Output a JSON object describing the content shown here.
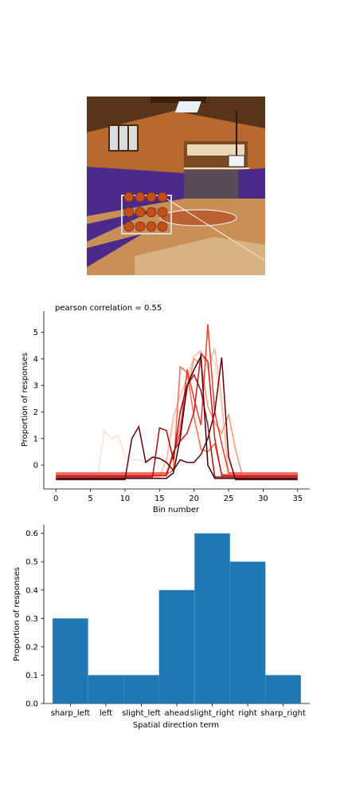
{
  "image": {
    "subject": "indoor-basketball-court-photo",
    "colors": {
      "wood": "#c98f55",
      "purple": "#4b2a8c",
      "wall": "#b86a2e",
      "ceiling": "#5a3418"
    }
  },
  "chart_data": [
    {
      "type": "line",
      "title": "pearson correlation = 0.55",
      "xlabel": "Bin number",
      "ylabel": "Proportion of responses",
      "xlim": [
        -1.75,
        36.75
      ],
      "ylim": [
        -0.9,
        5.8
      ],
      "xticks": [
        0,
        5,
        10,
        15,
        20,
        25,
        30,
        35
      ],
      "yticks": [
        0,
        1,
        2,
        3,
        4,
        5
      ],
      "colormap": "Reds",
      "x": [
        0,
        1,
        2,
        3,
        4,
        5,
        6,
        7,
        8,
        9,
        10,
        11,
        12,
        13,
        14,
        15,
        16,
        17,
        18,
        19,
        20,
        21,
        22,
        23,
        24,
        25,
        26,
        27,
        28,
        29,
        30,
        31,
        32,
        33,
        34,
        35
      ],
      "series": [
        {
          "color": "#fee0d2",
          "values": [
            -0.5,
            -0.5,
            -0.5,
            -0.5,
            -0.5,
            -0.5,
            -0.5,
            1.3,
            1.0,
            1.1,
            0.3,
            0.2,
            0.2,
            0.1,
            0.2,
            0.3,
            0.1,
            1.5,
            2.2,
            3.0,
            3.5,
            3.8,
            4.2,
            3.9,
            2.0,
            0.5,
            -0.5,
            -0.5,
            -0.5,
            -0.5,
            -0.5,
            -0.5,
            -0.5,
            -0.5,
            -0.5,
            -0.5
          ]
        },
        {
          "color": "#fcbba1",
          "values": [
            -0.45,
            -0.45,
            -0.45,
            -0.45,
            -0.45,
            -0.45,
            -0.45,
            -0.45,
            -0.45,
            -0.45,
            -0.45,
            -0.45,
            -0.45,
            -0.45,
            -0.45,
            -0.45,
            0.2,
            1.8,
            2.6,
            3.3,
            4.1,
            4.3,
            3.6,
            4.4,
            2.5,
            -0.45,
            -0.45,
            -0.45,
            -0.45,
            -0.45,
            -0.45,
            -0.45,
            -0.45,
            -0.45,
            -0.45,
            -0.45
          ]
        },
        {
          "color": "#fc9272",
          "values": [
            -0.4,
            -0.4,
            -0.4,
            -0.4,
            -0.4,
            -0.4,
            -0.4,
            -0.4,
            -0.4,
            -0.4,
            -0.4,
            -0.4,
            -0.4,
            -0.4,
            -0.4,
            -0.4,
            -0.4,
            0.3,
            1.5,
            2.8,
            4.0,
            3.8,
            2.2,
            1.6,
            1.2,
            1.9,
            0.6,
            -0.4,
            -0.4,
            -0.4,
            -0.4,
            -0.4,
            -0.4,
            -0.4,
            -0.4,
            -0.4
          ]
        },
        {
          "color": "#fb6a4a",
          "values": [
            -0.35,
            -0.35,
            -0.35,
            -0.35,
            -0.35,
            -0.35,
            -0.35,
            -0.35,
            -0.35,
            -0.35,
            -0.35,
            -0.35,
            -0.35,
            -0.35,
            -0.35,
            -0.35,
            -0.35,
            -0.2,
            3.7,
            3.5,
            1.8,
            0.6,
            0.5,
            0.8,
            -0.35,
            -0.35,
            -0.35,
            -0.35,
            -0.35,
            -0.35,
            -0.35,
            -0.35,
            -0.35,
            -0.35,
            -0.35,
            -0.35
          ]
        },
        {
          "color": "#ef3b2c",
          "values": [
            -0.3,
            -0.3,
            -0.3,
            -0.3,
            -0.3,
            -0.3,
            -0.3,
            -0.3,
            -0.3,
            -0.3,
            -0.3,
            -0.3,
            -0.3,
            -0.3,
            -0.3,
            -0.3,
            -0.3,
            0.4,
            1.2,
            3.6,
            2.5,
            1.5,
            5.3,
            2.0,
            0.8,
            -0.3,
            -0.3,
            -0.3,
            -0.3,
            -0.3,
            -0.3,
            -0.3,
            -0.3,
            -0.3,
            -0.3,
            -0.3
          ]
        },
        {
          "color": "#cb181d",
          "values": [
            -0.4,
            -0.4,
            -0.4,
            -0.4,
            -0.4,
            -0.4,
            -0.4,
            -0.4,
            -0.4,
            -0.4,
            -0.4,
            -0.4,
            -0.4,
            -0.4,
            -0.4,
            -0.4,
            -0.4,
            0.5,
            0.9,
            1.2,
            2.0,
            4.2,
            3.9,
            1.0,
            -0.4,
            -0.4,
            -0.4,
            -0.4,
            -0.4,
            -0.4,
            -0.4,
            -0.4,
            -0.4,
            -0.4,
            -0.4,
            -0.4
          ]
        },
        {
          "color": "#a50f15",
          "values": [
            -0.45,
            -0.45,
            -0.45,
            -0.45,
            -0.45,
            -0.45,
            -0.45,
            -0.45,
            -0.45,
            -0.45,
            -0.45,
            -0.45,
            -0.45,
            -0.45,
            -0.45,
            1.4,
            1.3,
            0.2,
            2.0,
            3.0,
            3.4,
            2.8,
            1.5,
            -0.45,
            -0.45,
            -0.45,
            -0.45,
            -0.45,
            -0.45,
            -0.45,
            -0.45,
            -0.45,
            -0.45,
            -0.45,
            -0.45,
            -0.45
          ]
        },
        {
          "color": "#67000d",
          "values": [
            -0.55,
            -0.55,
            -0.55,
            -0.55,
            -0.55,
            -0.55,
            -0.55,
            -0.55,
            -0.55,
            -0.55,
            -0.55,
            1.0,
            1.45,
            0.1,
            0.3,
            0.25,
            0.1,
            -0.2,
            0.2,
            0.1,
            0.1,
            0.4,
            1.0,
            2.0,
            4.05,
            0.3,
            -0.55,
            -0.55,
            -0.55,
            -0.55,
            -0.55,
            -0.55,
            -0.55,
            -0.55,
            -0.55,
            -0.55
          ]
        },
        {
          "color": "#3d0008",
          "values": [
            -0.5,
            -0.5,
            -0.5,
            -0.5,
            -0.5,
            -0.5,
            -0.5,
            -0.5,
            -0.5,
            -0.5,
            -0.5,
            -0.5,
            -0.5,
            -0.5,
            -0.5,
            -0.5,
            -0.5,
            -0.3,
            1.0,
            3.0,
            3.6,
            4.1,
            0.0,
            -0.5,
            -0.5,
            -0.5,
            -0.5,
            -0.5,
            -0.5,
            -0.5,
            -0.5,
            -0.5,
            -0.5,
            -0.5,
            -0.5,
            -0.5
          ]
        }
      ]
    },
    {
      "type": "bar",
      "xlabel": "Spatial direction term",
      "ylabel": "Proportion of responses",
      "ylim": [
        0,
        0.63
      ],
      "yticks": [
        "0.0",
        "0.1",
        "0.2",
        "0.3",
        "0.4",
        "0.5",
        "0.6"
      ],
      "color": "#1f77b4",
      "categories": [
        "sharp_left",
        "left",
        "slight_left",
        "ahead",
        "slight_right",
        "right",
        "sharp_right"
      ],
      "values": [
        0.3,
        0.1,
        0.1,
        0.4,
        0.6,
        0.5,
        0.1
      ]
    }
  ]
}
